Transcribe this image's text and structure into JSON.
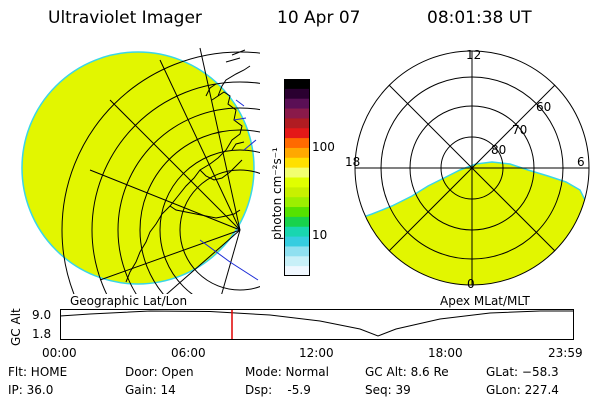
{
  "header": {
    "title": "Ultraviolet Imager",
    "date": "10 Apr 07",
    "time": "08:01:38 UT"
  },
  "colorbar": {
    "unit_label": "photon cm⁻²s⁻¹",
    "tick_100": "100",
    "tick_10": "10",
    "colors": [
      "#000000",
      "#2a0030",
      "#5a0f55",
      "#8a1a4a",
      "#b01c22",
      "#e41818",
      "#ff6a00",
      "#ffa800",
      "#ffe000",
      "#f2ff70",
      "#e0ff00",
      "#c8f000",
      "#9cef00",
      "#55e200",
      "#18d24c",
      "#19d6b0",
      "#35cde0",
      "#8fe0f0",
      "#c8f0f8",
      "#f0f8ff"
    ]
  },
  "geo_map": {
    "caption": "Geographic Lat/Lon",
    "emission_color": "#e2f600"
  },
  "polar_plot": {
    "caption": "Apex MLat/MLT",
    "mlt_12": "12",
    "mlt_18": "18",
    "mlt_6": "6",
    "mlt_0": "0",
    "lat_60": "60",
    "lat_70": "70",
    "lat_80": "80",
    "emission_color": "#e2f600"
  },
  "altitude_strip": {
    "axis_label": "GC Alt",
    "y_top": "9.0",
    "y_bottom": "1.8",
    "x_ticks": [
      "00:00",
      "06:00",
      "12:00",
      "18:00",
      "23:59"
    ],
    "current_time_hours": 8.03,
    "current_marker_color": "#e00000"
  },
  "info": {
    "flt": "Flt: HOME",
    "ip": "IP: 36.0",
    "door": "Door: Open",
    "gain": "Gain: 14",
    "mode": "Mode: Normal",
    "dsp": "Dsp:    -5.9",
    "gcalt": "GC Alt: 8.6 Re",
    "seq": "Seq: 39",
    "glat": "GLat: −58.3",
    "glon": "GLon: 227.4"
  }
}
